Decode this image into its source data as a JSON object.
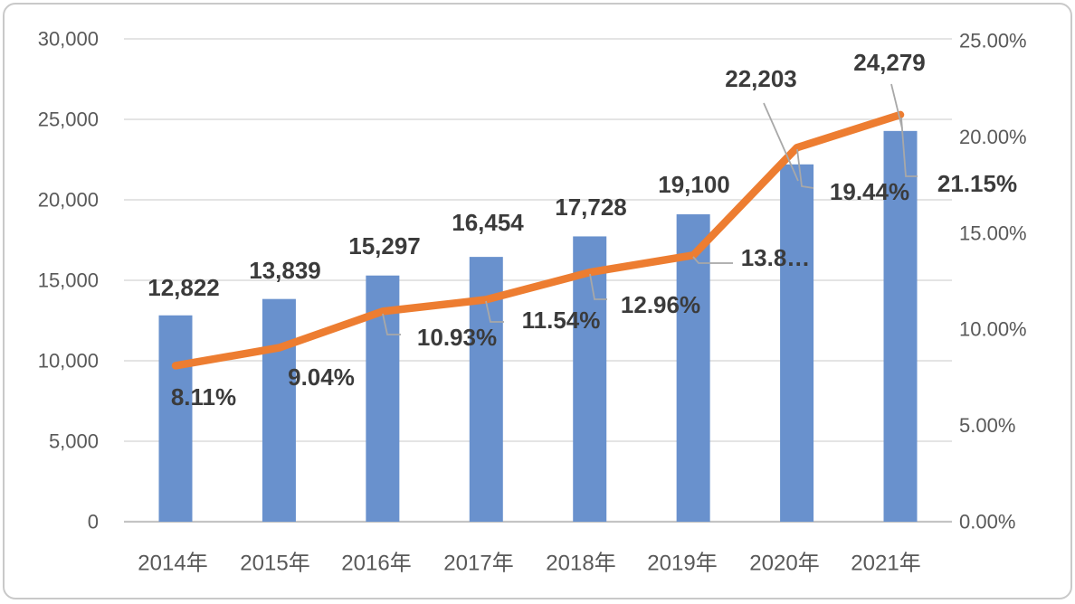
{
  "chart_data": {
    "type": "combo",
    "title": "",
    "categories": [
      "2014年",
      "2015年",
      "2016年",
      "2017年",
      "2018年",
      "2019年",
      "2020年",
      "2021年"
    ],
    "series": [
      {
        "name": "annual-value-bars",
        "type": "bar",
        "color": "#6991CD",
        "values": [
          12822,
          13839,
          15297,
          16454,
          17728,
          19100,
          22203,
          24279
        ],
        "labels": [
          "12,822",
          "13,839",
          "15,297",
          "16,454",
          "17,728",
          "19,100",
          "22,203",
          "24,279"
        ]
      },
      {
        "name": "growth-rate-line",
        "type": "line",
        "color": "#ED7D31",
        "values": [
          8.11,
          9.04,
          10.93,
          11.54,
          12.96,
          13.85,
          19.44,
          21.15
        ],
        "labels": [
          "8.11%",
          "9.04%",
          "10.93%",
          "11.54%",
          "12.96%",
          "13.8…",
          "19.44%",
          "21.15%"
        ]
      }
    ],
    "left_axis": {
      "min": 0,
      "max": 30000,
      "step": 5000,
      "tick_labels": [
        "0",
        "5,000",
        "10,000",
        "15,000",
        "20,000",
        "25,000",
        "30,000"
      ]
    },
    "right_axis": {
      "min": 0,
      "max": 25,
      "step": 5,
      "tick_labels": [
        "0.00%",
        "5.00%",
        "10.00%",
        "15.00%",
        "20.00%",
        "25.00%"
      ]
    },
    "grid": true,
    "legend": "none",
    "colors": {
      "grid": "#DBDBDB",
      "axis_line": "#C4C4C4",
      "tick_text": "#595959",
      "label_text": "#3B3B3B",
      "leader": "#A8A8A8",
      "background": "#FFFFFF",
      "border": "#C9C9C9"
    }
  }
}
